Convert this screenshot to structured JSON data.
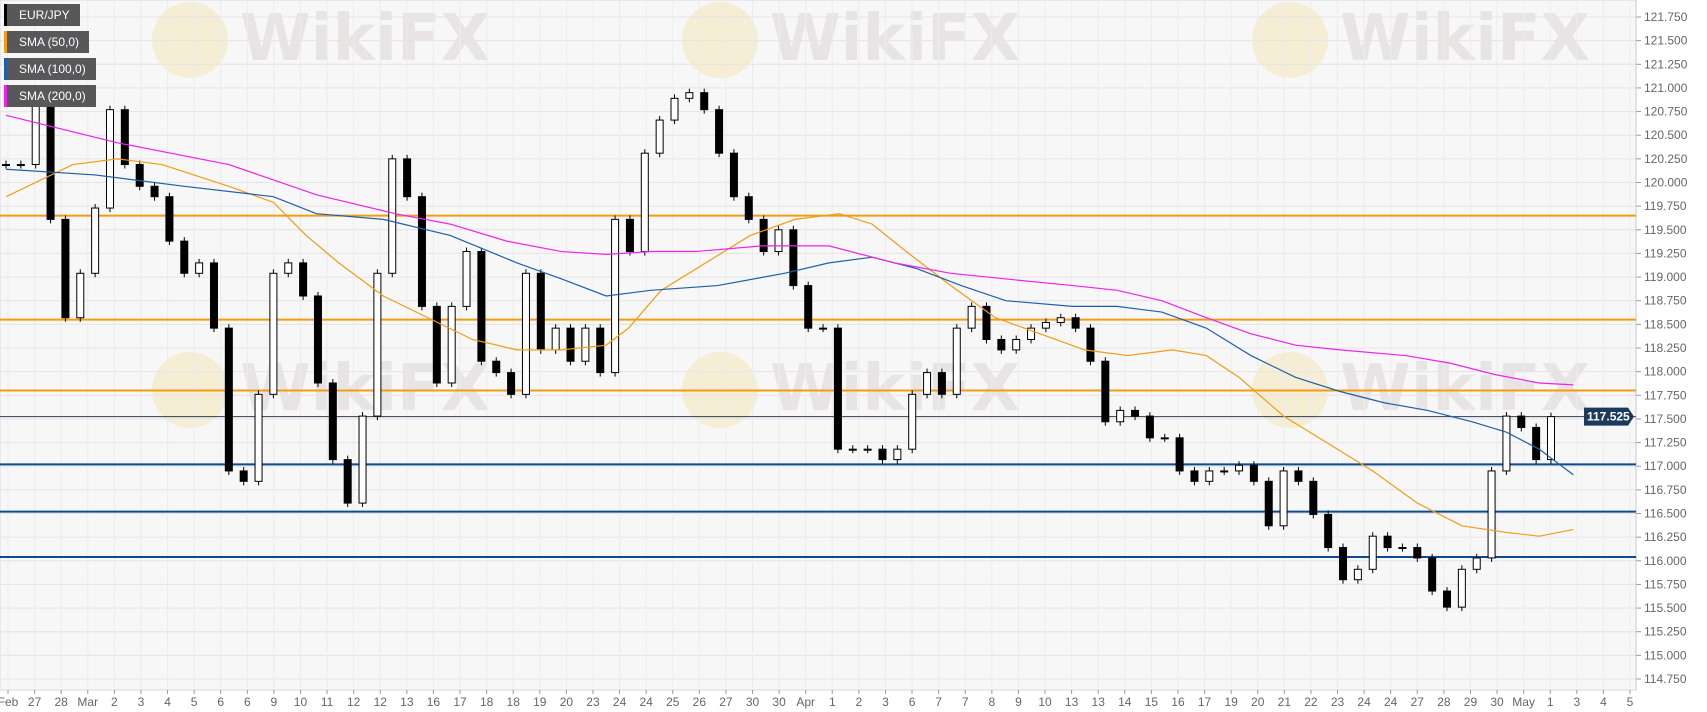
{
  "chart_data": {
    "type": "candlestick",
    "symbol": "EUR/JPY",
    "legend": [
      {
        "label": "EUR/JPY",
        "color": "#000000"
      },
      {
        "label": "SMA (50,0)",
        "color": "#f39c12"
      },
      {
        "label": "SMA (100,0)",
        "color": "#1f5fa8"
      },
      {
        "label": "SMA (200,0)",
        "color": "#ee22ee"
      }
    ],
    "legend_placement": "top-left",
    "ylim": [
      114.75,
      121.75
    ],
    "y_ticks": [
      "121.750",
      "121.500",
      "121.250",
      "121.000",
      "120.750",
      "120.500",
      "120.250",
      "120.000",
      "119.750",
      "119.500",
      "119.250",
      "119.000",
      "118.750",
      "118.500",
      "118.250",
      "118.000",
      "117.750",
      "117.500",
      "117.250",
      "117.000",
      "116.750",
      "116.500",
      "116.250",
      "116.000",
      "115.750",
      "115.500",
      "115.250",
      "115.000",
      "114.750"
    ],
    "x_ticks": [
      "Feb",
      "27",
      "28",
      "Mar",
      "2",
      "3",
      "4",
      "5",
      "6",
      "6",
      "9",
      "10",
      "11",
      "12",
      "12",
      "13",
      "16",
      "17",
      "18",
      "18",
      "19",
      "20",
      "23",
      "24",
      "24",
      "25",
      "26",
      "27",
      "30",
      "30",
      "Apr",
      "1",
      "2",
      "3",
      "6",
      "7",
      "7",
      "8",
      "9",
      "10",
      "13",
      "13",
      "14",
      "15",
      "16",
      "17",
      "19",
      "20",
      "21",
      "22",
      "23",
      "24",
      "24",
      "27",
      "28",
      "29",
      "30",
      "May",
      "1",
      "3",
      "4",
      "5"
    ],
    "grid": true,
    "current_price": "117.525",
    "closes": [
      120.19,
      120.19,
      120.95,
      119.61,
      118.57,
      119.04,
      119.73,
      120.77,
      120.19,
      119.96,
      119.85,
      119.38,
      119.04,
      119.15,
      118.46,
      116.95,
      116.84,
      117.76,
      119.04,
      119.15,
      118.8,
      117.88,
      117.07,
      116.61,
      117.53,
      119.04,
      120.25,
      119.85,
      118.69,
      117.88,
      118.69,
      119.27,
      118.11,
      117.99,
      117.76,
      119.04,
      118.23,
      118.46,
      118.11,
      118.46,
      117.99,
      119.61,
      119.27,
      120.31,
      120.66,
      120.89,
      120.95,
      120.77,
      120.31,
      119.85,
      119.61,
      119.27,
      119.5,
      118.91,
      118.46,
      118.46,
      117.18,
      117.18,
      117.18,
      117.07,
      117.18,
      117.76,
      117.99,
      117.76,
      118.46,
      118.69,
      118.34,
      118.23,
      118.34,
      118.46,
      118.52,
      118.57,
      118.46,
      118.11,
      117.47,
      117.59,
      117.53,
      117.3,
      117.3,
      116.95,
      116.84,
      116.95,
      116.95,
      117.01,
      116.84,
      116.37,
      116.95,
      116.84,
      116.49,
      116.14,
      115.8,
      115.91,
      116.26,
      116.14,
      116.14,
      116.03,
      115.68,
      115.51,
      115.91,
      116.03,
      116.95,
      117.53,
      117.41,
      117.07,
      117.525
    ],
    "sma50": [
      [
        0,
        119.85
      ],
      [
        4.5,
        120.19
      ],
      [
        7.5,
        120.25
      ],
      [
        10.5,
        120.19
      ],
      [
        15,
        119.96
      ],
      [
        18,
        119.79
      ],
      [
        20.2,
        119.44
      ],
      [
        22.4,
        119.15
      ],
      [
        25.4,
        118.8
      ],
      [
        28.4,
        118.57
      ],
      [
        31.4,
        118.34
      ],
      [
        34.4,
        118.23
      ],
      [
        37.4,
        118.23
      ],
      [
        40.4,
        118.28
      ],
      [
        41.9,
        118.46
      ],
      [
        44.1,
        118.86
      ],
      [
        47.1,
        119.15
      ],
      [
        50.1,
        119.44
      ],
      [
        53.1,
        119.61
      ],
      [
        56.1,
        119.67
      ],
      [
        58.3,
        119.56
      ],
      [
        60.6,
        119.27
      ],
      [
        63.6,
        118.91
      ],
      [
        66.6,
        118.57
      ],
      [
        69.6,
        118.4
      ],
      [
        72.6,
        118.23
      ],
      [
        75.5,
        118.17
      ],
      [
        78.5,
        118.23
      ],
      [
        80.8,
        118.17
      ],
      [
        83,
        117.94
      ],
      [
        86,
        117.53
      ],
      [
        89,
        117.24
      ],
      [
        92,
        116.95
      ],
      [
        95,
        116.61
      ],
      [
        98,
        116.37
      ],
      [
        101,
        116.3
      ],
      [
        103.2,
        116.26
      ],
      [
        105.5,
        116.33
      ]
    ],
    "sma100": [
      [
        0,
        120.14
      ],
      [
        6,
        120.08
      ],
      [
        12,
        119.96
      ],
      [
        18,
        119.85
      ],
      [
        20.9,
        119.67
      ],
      [
        25.4,
        119.61
      ],
      [
        29.9,
        119.44
      ],
      [
        34.4,
        119.15
      ],
      [
        37.4,
        118.98
      ],
      [
        40.4,
        118.8
      ],
      [
        43.4,
        118.86
      ],
      [
        47.9,
        118.91
      ],
      [
        52.4,
        119.04
      ],
      [
        55.4,
        119.15
      ],
      [
        58.3,
        119.21
      ],
      [
        61.3,
        119.09
      ],
      [
        64.3,
        118.91
      ],
      [
        67.3,
        118.75
      ],
      [
        71.8,
        118.69
      ],
      [
        74.8,
        118.69
      ],
      [
        77.8,
        118.63
      ],
      [
        80.8,
        118.46
      ],
      [
        83.8,
        118.17
      ],
      [
        86.8,
        117.94
      ],
      [
        89.8,
        117.79
      ],
      [
        92.8,
        117.67
      ],
      [
        95.7,
        117.59
      ],
      [
        98.7,
        117.47
      ],
      [
        101,
        117.36
      ],
      [
        103.2,
        117.18
      ],
      [
        105.5,
        116.91
      ]
    ],
    "sma200": [
      [
        0,
        120.71
      ],
      [
        7.5,
        120.42
      ],
      [
        15,
        120.19
      ],
      [
        20.9,
        119.87
      ],
      [
        26.2,
        119.67
      ],
      [
        29.9,
        119.56
      ],
      [
        33.7,
        119.38
      ],
      [
        37.4,
        119.27
      ],
      [
        40.4,
        119.24
      ],
      [
        43.4,
        119.27
      ],
      [
        46.4,
        119.27
      ],
      [
        50.9,
        119.33
      ],
      [
        55.4,
        119.33
      ],
      [
        59.8,
        119.15
      ],
      [
        63.6,
        119.04
      ],
      [
        67.3,
        118.98
      ],
      [
        71.8,
        118.91
      ],
      [
        74.8,
        118.86
      ],
      [
        77.8,
        118.75
      ],
      [
        80.8,
        118.57
      ],
      [
        83.8,
        118.4
      ],
      [
        86.8,
        118.28
      ],
      [
        89.8,
        118.23
      ],
      [
        94.2,
        118.17
      ],
      [
        97.2,
        118.09
      ],
      [
        100.2,
        117.97
      ],
      [
        103.2,
        117.88
      ],
      [
        105.5,
        117.86
      ]
    ],
    "resistance_levels": [
      119.65,
      118.55,
      117.8
    ],
    "support_levels": [
      117.02,
      116.52,
      116.04
    ],
    "resistance_color": "#f39c12",
    "support_color": "#0d4a94"
  },
  "watermark": "WikiFX"
}
